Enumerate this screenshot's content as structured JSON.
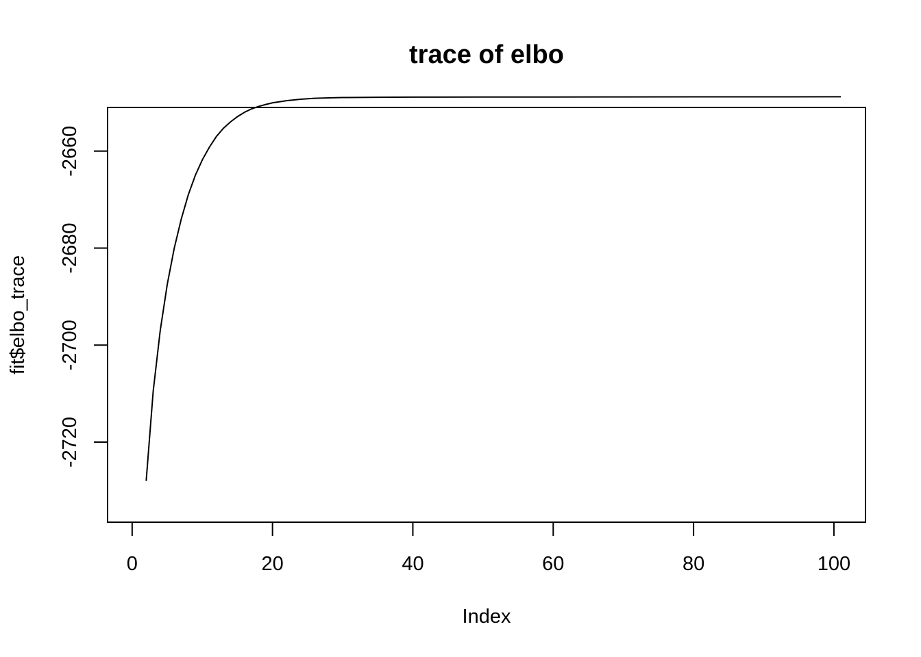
{
  "chart_data": {
    "type": "line",
    "title": "trace of elbo",
    "xlabel": "Index",
    "ylabel": "fit$elbo_trace",
    "xlim": [
      -3.5,
      104.5
    ],
    "ylim": [
      -2736.5,
      -2651
    ],
    "x_ticks": [
      0,
      20,
      40,
      60,
      80,
      100
    ],
    "x_tick_labels": [
      "0",
      "20",
      "40",
      "60",
      "80",
      "100"
    ],
    "y_ticks": [
      -2720,
      -2700,
      -2680,
      -2660
    ],
    "y_tick_labels": [
      "-2720",
      "-2700",
      "-2680",
      "-2660"
    ],
    "grid": false,
    "legend": "none",
    "series": [
      {
        "color": "#000000",
        "x": [
          2,
          3,
          4,
          5,
          6,
          7,
          8,
          9,
          10,
          11,
          12,
          13,
          14,
          15,
          16,
          17,
          18,
          19,
          20,
          22,
          24,
          26,
          28,
          30,
          35,
          40,
          50,
          60,
          70,
          80,
          90,
          101
        ],
        "y": [
          -2728,
          -2709.5,
          -2697,
          -2687.5,
          -2680,
          -2674,
          -2669,
          -2665,
          -2661.8,
          -2659.2,
          -2657,
          -2655.3,
          -2654,
          -2652.9,
          -2652,
          -2651.3,
          -2650.8,
          -2650.4,
          -2650.05,
          -2649.6,
          -2649.3,
          -2649.12,
          -2649.02,
          -2648.96,
          -2648.9,
          -2648.87,
          -2648.85,
          -2648.84,
          -2648.83,
          -2648.82,
          -2648.81,
          -2648.8
        ]
      }
    ]
  }
}
